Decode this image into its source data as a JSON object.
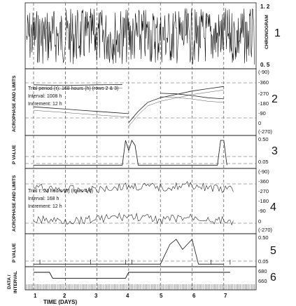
{
  "figure": {
    "x_axis_label": "TIME (DAYS)",
    "day_ticks": [
      "1",
      "2",
      "3",
      "4",
      "5",
      "6",
      "7"
    ],
    "row_numbers": [
      "1",
      "2",
      "3",
      "4",
      "5",
      "6"
    ]
  },
  "panels": {
    "chronogram": {
      "label": "CHRONOGRAM",
      "y_top": "1. 2",
      "y_bottom": "0. 5"
    },
    "acrophase_a": {
      "label": "ACROPHASE AND LIMITS",
      "ticks": [
        "(-90)",
        "-360",
        "-270",
        "-180",
        "-90",
        "0",
        "(-270)"
      ],
      "note_1": "Trial period (τ): 168 hours (h) (rows 2 & 3)",
      "note_2": "Interval: 1008 h",
      "note_3": "Increment: 12 h"
    },
    "p_value_a": {
      "label": "P VALUE",
      "ticks": [
        "0.50",
        "0.05"
      ]
    },
    "acrophase_b": {
      "label": "ACROPHASE AND LIMITS",
      "ticks": [
        "(-90)",
        "-360",
        "-270",
        "-180",
        "-90",
        "0",
        "(-270)"
      ],
      "note_1": "Trial τ: 24 hours (h) (rows 4-6)",
      "note_2": "Interval: 168 h",
      "note_3": "Increment: 12 h"
    },
    "p_value_b": {
      "label": "P VALUE",
      "ticks": [
        "0.50",
        "0.05"
      ]
    },
    "data_interval": {
      "label_1": "DATA /",
      "label_2": "INTERVAL",
      "ticks": [
        "680",
        "660"
      ]
    }
  },
  "chart_data": [
    {
      "type": "line",
      "panel": "chronogram",
      "ylim": [
        0.5,
        1.2
      ],
      "description_values": "dense high-frequency signal oscillating between about 0.55 and 1.2 over days 1-7",
      "x": [
        1,
        2,
        3,
        4,
        5,
        6,
        7
      ],
      "ylabel": "CHRONOGRAM"
    },
    {
      "type": "line",
      "panel": "acrophase_a",
      "ylabel": "ACROPHASE AND LIMITS",
      "series": [
        {
          "x": [
            1.0,
            1.5,
            2.0,
            2.5,
            3.0,
            3.5,
            3.8
          ],
          "y": [
            -355,
            -352,
            -350,
            -352,
            -355,
            -356,
            -358
          ]
        },
        {
          "x": [
            1.0,
            1.5,
            2.0,
            2.5,
            3.0,
            3.5,
            4.0
          ],
          "y": [
            -160,
            -150,
            -140,
            -130,
            -120,
            -110,
            -100
          ]
        },
        {
          "x": [
            4.0,
            4.3,
            4.6,
            5.0,
            5.5,
            6.0,
            6.5,
            7.0
          ],
          "y": [
            -20,
            -120,
            -200,
            -240,
            -270,
            -300,
            -320,
            -340
          ]
        },
        {
          "x": [
            5.0,
            5.5,
            6.0,
            6.5,
            7.0
          ],
          "y": [
            -280,
            -275,
            -260,
            -240,
            -230
          ]
        }
      ]
    },
    {
      "type": "line",
      "panel": "p_value_a",
      "ylim": [
        0,
        0.5
      ],
      "x": [
        1,
        2,
        3,
        3.8,
        3.9,
        4.0,
        4.1,
        4.2,
        4.3,
        6.8,
        6.9,
        7.0,
        7.1
      ],
      "y": [
        0.01,
        0.01,
        0.01,
        0.01,
        0.5,
        0.3,
        0.5,
        0.4,
        0.01,
        0.01,
        0.5,
        0.5,
        0.01
      ]
    },
    {
      "type": "line",
      "panel": "acrophase_b",
      "ylabel": "ACROPHASE AND LIMITS",
      "series": [
        {
          "x": [
            1,
            2,
            3,
            4,
            5,
            6,
            7
          ],
          "y": [
            -320,
            -300,
            -310,
            -330,
            -320,
            -340,
            -300
          ]
        },
        {
          "x": [
            1,
            2,
            3,
            4,
            5,
            6,
            7
          ],
          "y": [
            -30,
            -20,
            -40,
            -60,
            -30,
            -50,
            -20
          ]
        }
      ]
    },
    {
      "type": "line",
      "panel": "p_value_b",
      "ylim": [
        0,
        0.5
      ],
      "x": [
        1,
        2,
        3,
        4,
        5.0,
        5.3,
        5.5,
        5.7,
        6.0,
        6.2,
        7
      ],
      "y": [
        0.01,
        0.01,
        0.01,
        0.01,
        0.01,
        0.4,
        0.5,
        0.3,
        0.5,
        0.01,
        0.01
      ]
    },
    {
      "type": "line",
      "panel": "data_interval",
      "ylim": [
        660,
        680
      ],
      "x": [
        1,
        1.5,
        1.6,
        3.9,
        4.0,
        7.2
      ],
      "y": [
        680,
        680,
        668,
        668,
        680,
        680
      ]
    }
  ]
}
